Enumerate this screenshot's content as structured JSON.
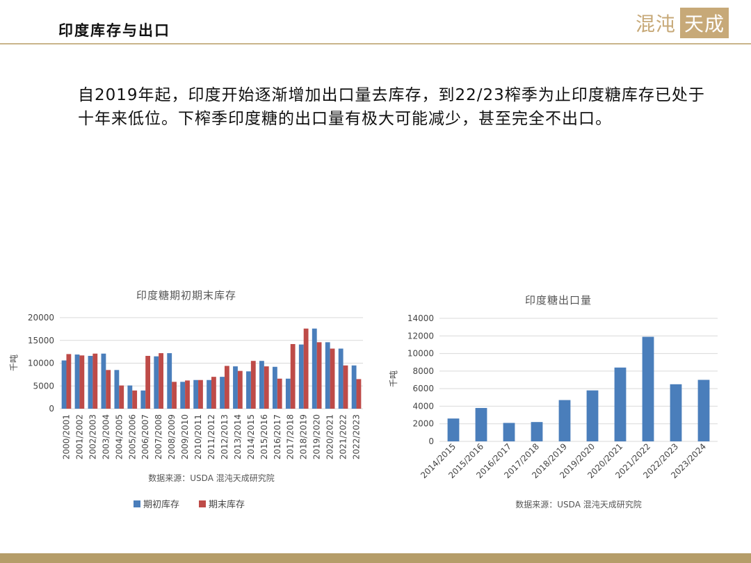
{
  "header": {
    "title": "印度库存与出口",
    "logo_left": "混沌",
    "logo_right": "天成"
  },
  "summary": "自2019年起，印度开始逐渐增加出口量去库存，到22/23榨季为止印度糖库存已处于十年来低位。下榨季印度糖的出口量有极大可能减少，甚至完全不出口。",
  "colors": {
    "blue": "#4a7ebb",
    "red": "#be4b48",
    "gold": "#c7a978"
  },
  "chart_data": [
    {
      "type": "bar",
      "title": "印度糖期初期末库存",
      "ylabel": "千吨",
      "source": "数据来源：USDA 混沌天成研究院",
      "ylim": [
        0,
        20000
      ],
      "yticks": [
        0,
        5000,
        10000,
        15000,
        20000
      ],
      "grid": true,
      "legend_position": "bottom",
      "categories": [
        "2000/2001",
        "2001/2002",
        "2002/2003",
        "2003/2004",
        "2004/2005",
        "2005/2006",
        "2006/2007",
        "2007/2008",
        "2008/2009",
        "2009/2010",
        "2010/2011",
        "2011/2012",
        "2012/2013",
        "2013/2014",
        "2014/2015",
        "2015/2016",
        "2016/2017",
        "2017/2018",
        "2018/2019",
        "2019/2020",
        "2020/2021",
        "2021/2022",
        "2022/2023"
      ],
      "series": [
        {
          "name": "期初库存",
          "color": "#4a7ebb",
          "values": [
            10600,
            11900,
            11600,
            12100,
            8500,
            5100,
            4000,
            11500,
            12200,
            5900,
            6300,
            6300,
            7000,
            9300,
            8200,
            10500,
            9200,
            6600,
            14100,
            17600,
            14600,
            13200,
            9500
          ]
        },
        {
          "name": "期末库存",
          "color": "#be4b48",
          "values": [
            12000,
            11700,
            12100,
            8500,
            5100,
            4000,
            11600,
            12200,
            5900,
            6200,
            6300,
            7000,
            9400,
            8300,
            10500,
            9300,
            6600,
            14200,
            17600,
            14600,
            13200,
            9500,
            6500
          ]
        }
      ]
    },
    {
      "type": "bar",
      "title": "印度糖出口量",
      "ylabel": "千吨",
      "source": "数据来源：USDA 混沌天成研究院",
      "ylim": [
        0,
        14000
      ],
      "yticks": [
        0,
        2000,
        4000,
        6000,
        8000,
        10000,
        12000,
        14000
      ],
      "grid": true,
      "categories": [
        "2014/2015",
        "2015/2016",
        "2016/2017",
        "2017/2018",
        "2018/2019",
        "2019/2020",
        "2020/2021",
        "2021/2022",
        "2022/2023",
        "2023/2024"
      ],
      "series": [
        {
          "name": "",
          "color": "#4a7ebb",
          "values": [
            2600,
            3800,
            2100,
            2200,
            4700,
            5800,
            8400,
            11900,
            6500,
            7000
          ]
        }
      ]
    }
  ]
}
